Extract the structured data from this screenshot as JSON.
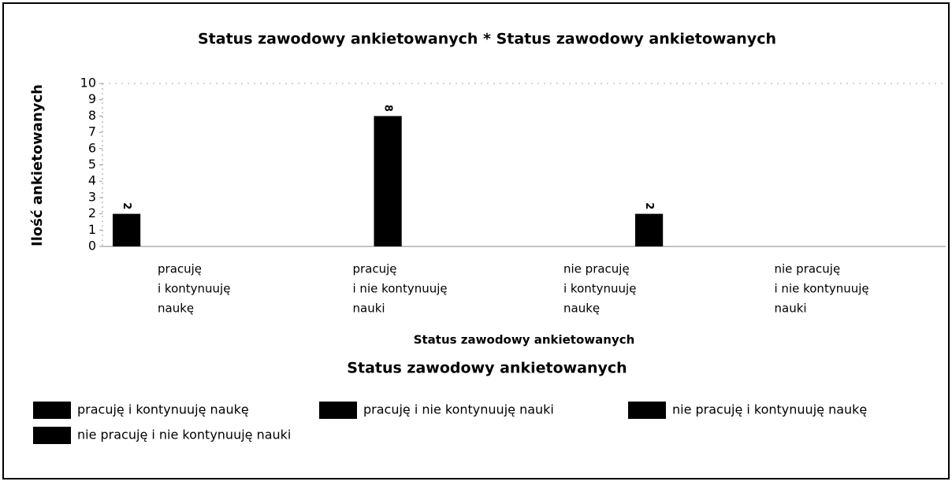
{
  "chart_data": {
    "type": "bar",
    "title": "Status zawodowy ankietowanych * Status zawodowy ankietowanych",
    "xlabel": "Status zawodowy ankietowanych",
    "ylabel": "Ilość ankietowanych",
    "legend_title": "Status zawodowy ankietowanych",
    "categories": [
      [
        "pracuję",
        "i kontynuuję",
        "naukę"
      ],
      [
        "pracuję",
        "i nie kontynuuję",
        "nauki"
      ],
      [
        "nie pracuję",
        "i kontynuuję",
        "naukę"
      ],
      [
        "nie pracuję",
        "i nie kontynuuję",
        "nauki"
      ]
    ],
    "series": [
      {
        "name": "pracuję i kontynuuję naukę",
        "color": "#000000",
        "values": [
          2,
          null,
          null,
          null
        ]
      },
      {
        "name": "pracuję i nie kontynuuję nauki",
        "color": "#000000",
        "values": [
          null,
          8,
          null,
          null
        ]
      },
      {
        "name": "nie pracuję i kontynuuję naukę",
        "color": "#000000",
        "values": [
          null,
          null,
          2,
          null
        ]
      },
      {
        "name": "nie pracuję i nie kontynuuję nauki",
        "color": "#000000",
        "values": [
          null,
          null,
          null,
          null
        ]
      }
    ],
    "ylim": [
      0,
      10
    ],
    "yticks": [
      0,
      1,
      2,
      3,
      4,
      5,
      6,
      7,
      8,
      9,
      10
    ],
    "grid": false
  }
}
